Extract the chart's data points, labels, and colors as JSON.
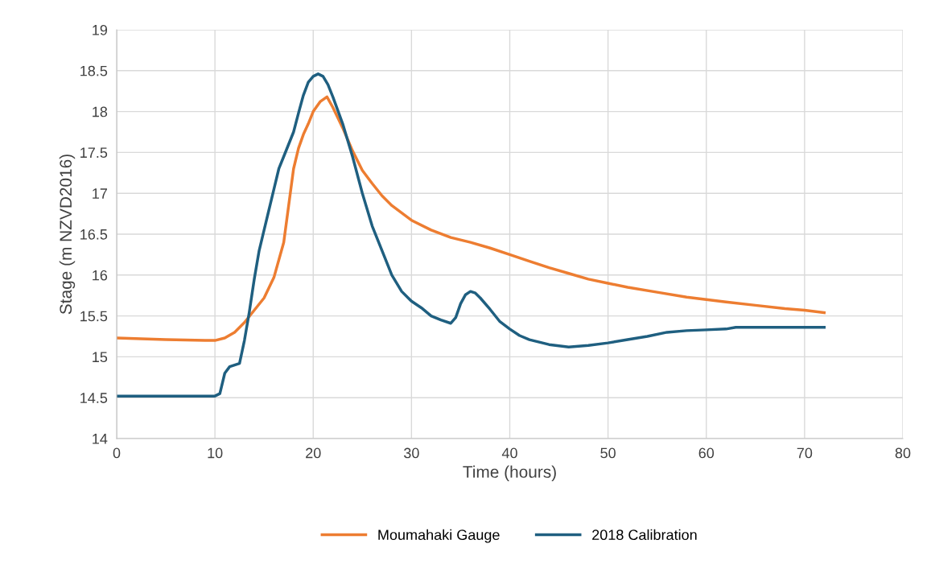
{
  "chart_data": {
    "type": "line",
    "xlabel": "Time (hours)",
    "ylabel": "Stage (m NZVD2016)",
    "xlim": [
      0,
      80
    ],
    "xticks": [
      0,
      10,
      20,
      30,
      40,
      50,
      60,
      70,
      80
    ],
    "ylim": [
      14,
      19
    ],
    "yticks": [
      14,
      14.5,
      15,
      15.5,
      16,
      16.5,
      17,
      17.5,
      18,
      18.5,
      19
    ],
    "grid": true,
    "legend": "bottom",
    "marker": "none",
    "line_style": "solid",
    "series": [
      {
        "name": "Moumahaki Gauge",
        "color": "#ed7d31",
        "x": [
          0,
          5,
          9,
          10,
          11,
          12,
          13,
          14,
          15,
          16,
          17,
          17.5,
          18,
          18.5,
          19,
          19.5,
          20,
          20.7,
          21.4,
          22,
          23,
          24,
          25,
          26,
          27,
          28,
          30,
          32,
          34,
          36,
          38,
          40,
          42,
          44,
          46,
          48,
          50,
          52,
          55,
          58,
          60,
          62,
          65,
          68,
          70,
          72
        ],
        "values": [
          15.23,
          15.21,
          15.2,
          15.2,
          15.23,
          15.3,
          15.42,
          15.57,
          15.72,
          15.97,
          16.4,
          16.85,
          17.3,
          17.55,
          17.72,
          17.85,
          18.0,
          18.12,
          18.18,
          18.05,
          17.8,
          17.52,
          17.28,
          17.12,
          16.97,
          16.85,
          16.67,
          16.55,
          16.46,
          16.4,
          16.33,
          16.25,
          16.17,
          16.09,
          16.02,
          15.95,
          15.9,
          15.85,
          15.79,
          15.73,
          15.7,
          15.67,
          15.63,
          15.59,
          15.57,
          15.54
        ]
      },
      {
        "name": "2018 Calibration",
        "color": "#1f5f80",
        "x": [
          0,
          10,
          10.5,
          11,
          11.5,
          12.5,
          13,
          13.5,
          14,
          14.5,
          15,
          15.5,
          16,
          16.5,
          17,
          17.5,
          18,
          18.5,
          19,
          19.5,
          20,
          20.5,
          21,
          21.5,
          22,
          23,
          24,
          25,
          26,
          27,
          28,
          29,
          30,
          31,
          32,
          33,
          34,
          34.5,
          35,
          35.5,
          36,
          36.5,
          37,
          38,
          39,
          40,
          41,
          42,
          44,
          46,
          48,
          50,
          52,
          54,
          56,
          58,
          60,
          62,
          63,
          66,
          72
        ],
        "values": [
          14.52,
          14.52,
          14.55,
          14.8,
          14.88,
          14.92,
          15.2,
          15.55,
          15.95,
          16.3,
          16.55,
          16.8,
          17.05,
          17.3,
          17.45,
          17.6,
          17.75,
          17.98,
          18.2,
          18.36,
          18.43,
          18.46,
          18.43,
          18.33,
          18.18,
          17.85,
          17.45,
          17.0,
          16.6,
          16.3,
          16.0,
          15.8,
          15.68,
          15.6,
          15.5,
          15.45,
          15.41,
          15.48,
          15.65,
          15.76,
          15.8,
          15.78,
          15.72,
          15.58,
          15.43,
          15.34,
          15.26,
          15.21,
          15.15,
          15.12,
          15.14,
          15.17,
          15.21,
          15.25,
          15.3,
          15.32,
          15.33,
          15.34,
          15.36,
          15.36,
          15.36
        ]
      }
    ]
  }
}
